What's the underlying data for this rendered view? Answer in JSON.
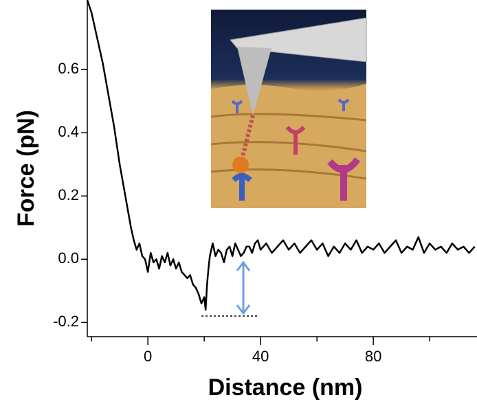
{
  "chart_data": {
    "type": "line",
    "x_label": "Distance (nm)",
    "y_label": "Force (pN)",
    "x": [
      -21.5,
      -20,
      -19,
      -18,
      -17,
      -16,
      -15,
      -14,
      -13,
      -12,
      -11,
      -10,
      -9,
      -8,
      -7,
      -6,
      -5,
      -4,
      -3,
      -2,
      -1,
      0,
      1,
      2,
      3,
      4,
      5,
      6,
      7,
      8,
      9,
      10,
      11,
      12,
      13,
      14,
      15,
      16,
      17,
      18,
      19,
      20,
      20.5,
      21,
      21.5,
      22,
      23,
      24,
      25,
      26,
      27,
      28,
      29,
      30,
      31,
      32,
      33,
      34,
      35,
      36,
      37,
      38,
      39,
      40,
      42,
      44,
      46,
      48,
      50,
      52,
      54,
      56,
      58,
      60,
      62,
      64,
      66,
      68,
      70,
      72,
      74,
      76,
      78,
      80,
      82,
      84,
      86,
      88,
      90,
      92,
      94,
      96,
      98,
      100,
      102,
      104,
      106,
      108,
      110,
      112,
      114,
      116
    ],
    "values": [
      0.82,
      0.78,
      0.74,
      0.7,
      0.66,
      0.62,
      0.57,
      0.52,
      0.47,
      0.42,
      0.36,
      0.3,
      0.25,
      0.2,
      0.15,
      0.1,
      0.06,
      0.03,
      0.05,
      0.01,
      0.0,
      -0.04,
      0.02,
      -0.01,
      0.0,
      -0.03,
      0.01,
      -0.01,
      0.02,
      -0.02,
      0.0,
      -0.03,
      -0.01,
      -0.04,
      -0.05,
      -0.06,
      -0.05,
      -0.08,
      -0.09,
      -0.11,
      -0.14,
      -0.12,
      -0.16,
      -0.08,
      -0.03,
      0.01,
      0.05,
      0.01,
      0.03,
      0.02,
      -0.01,
      0.03,
      0.04,
      0.01,
      0.05,
      0.03,
      0.01,
      0.02,
      0.04,
      0.04,
      0.02,
      0.05,
      0.06,
      0.03,
      0.05,
      0.02,
      0.04,
      0.06,
      0.03,
      0.05,
      0.02,
      0.04,
      0.06,
      0.03,
      0.05,
      0.01,
      0.04,
      0.02,
      0.05,
      0.03,
      0.06,
      0.02,
      0.04,
      0.03,
      0.05,
      0.02,
      0.04,
      0.06,
      0.02,
      0.04,
      0.03,
      0.07,
      0.02,
      0.05,
      0.03,
      0.04,
      0.02,
      0.05,
      0.03,
      0.04,
      0.02,
      0.04
    ],
    "color": "#000000",
    "xlim": [
      -21.5,
      116.8
    ],
    "ylim": [
      -0.245,
      0.82
    ],
    "xticks": [
      0,
      40,
      80
    ],
    "xminor_ticks": [
      -20,
      20,
      60,
      100
    ],
    "yticks": [
      0.6,
      0.4,
      0.2,
      {
        "value": 0,
        "label": "0.0"
      },
      -0.2
    ]
  }
}
